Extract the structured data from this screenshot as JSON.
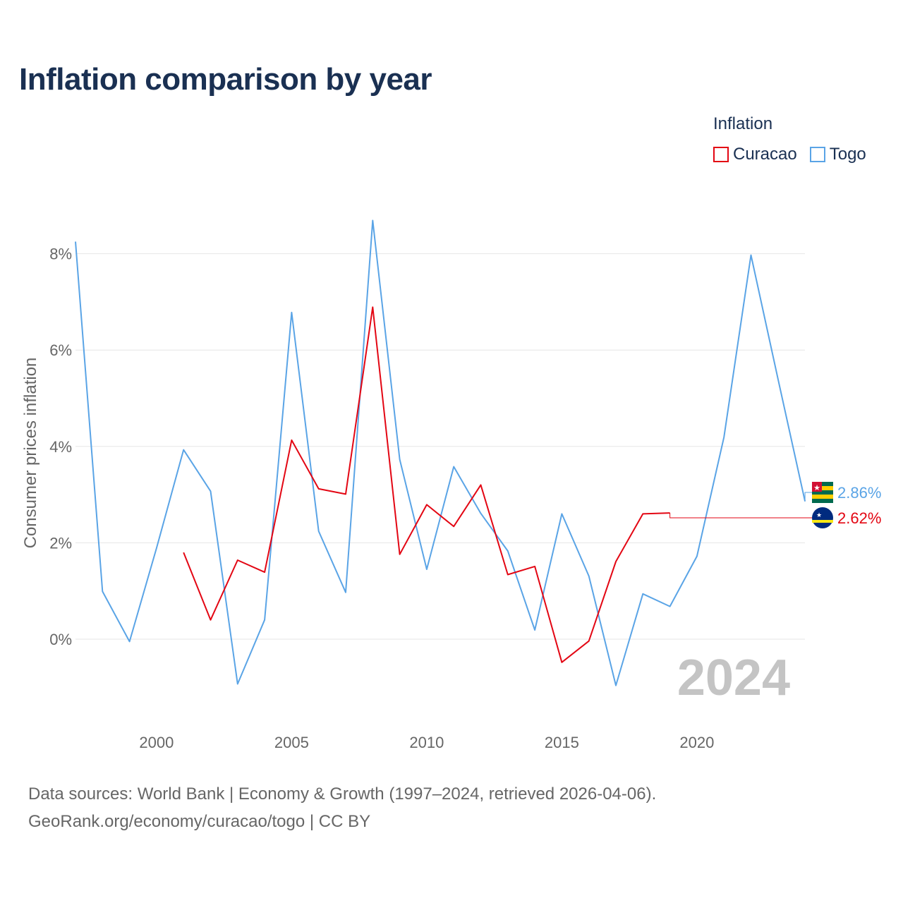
{
  "title": "Inflation comparison by year",
  "legend": {
    "title": "Inflation",
    "items": [
      {
        "name": "Curacao",
        "color": "#e30613"
      },
      {
        "name": "Togo",
        "color": "#5aa4e6"
      }
    ]
  },
  "source": {
    "line1": "Data sources: World Bank | Economy & Growth (1997–2024, retrieved 2026-04-06).",
    "line2": "GeoRank.org/economy/curacao/togo | CC BY"
  },
  "chart_data": {
    "type": "line",
    "title": "Inflation comparison by year",
    "xlabel": "",
    "ylabel": "Consumer prices inflation",
    "xlim": [
      1997,
      2024
    ],
    "ylim": [
      -1.5,
      8.8
    ],
    "x_ticks": [
      2000,
      2005,
      2010,
      2015,
      2020
    ],
    "y_ticks": [
      0,
      2,
      4,
      6,
      8
    ],
    "y_tick_labels": [
      "0%",
      "2%",
      "4%",
      "6%",
      "8%"
    ],
    "grid": true,
    "year_watermark": "2024",
    "series": [
      {
        "name": "Curacao",
        "color": "#e30613",
        "x": [
          2001,
          2002,
          2003,
          2004,
          2005,
          2006,
          2007,
          2008,
          2009,
          2010,
          2011,
          2012,
          2013,
          2014,
          2015,
          2016,
          2017,
          2018,
          2019
        ],
        "values": [
          1.8,
          0.4,
          1.64,
          1.39,
          4.13,
          3.12,
          3.01,
          6.89,
          1.76,
          2.79,
          2.34,
          3.2,
          1.34,
          1.51,
          -0.48,
          -0.04,
          1.61,
          2.6,
          2.62
        ],
        "end_label": "2.62%"
      },
      {
        "name": "Togo",
        "color": "#5aa4e6",
        "x": [
          1997,
          1998,
          1999,
          2000,
          2001,
          2002,
          2003,
          2004,
          2005,
          2006,
          2007,
          2008,
          2009,
          2010,
          2011,
          2012,
          2013,
          2014,
          2015,
          2016,
          2017,
          2018,
          2019,
          2020,
          2021,
          2022,
          2023,
          2024
        ],
        "values": [
          8.25,
          0.99,
          -0.05,
          1.89,
          3.93,
          3.07,
          -0.93,
          0.4,
          6.78,
          2.24,
          0.97,
          8.69,
          3.73,
          1.45,
          3.58,
          2.61,
          1.83,
          0.19,
          2.6,
          1.31,
          -0.96,
          0.94,
          0.68,
          1.72,
          4.19,
          7.97,
          5.4,
          2.86
        ],
        "end_label": "2.86%"
      }
    ]
  }
}
